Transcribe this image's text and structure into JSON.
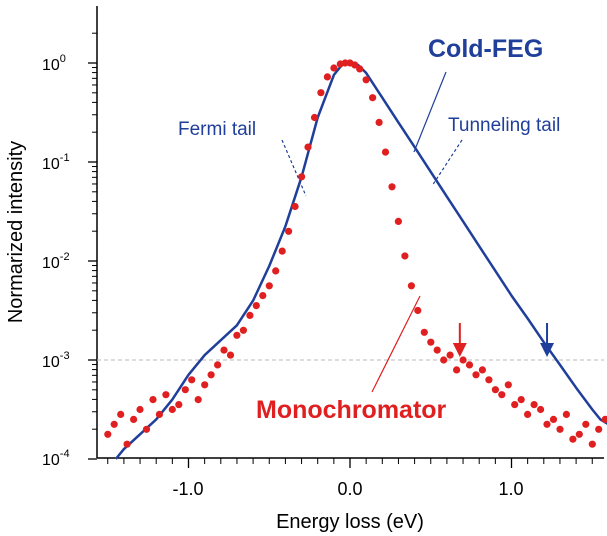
{
  "chart_data": {
    "type": "scatter",
    "title": "",
    "xlabel": "Energy loss (eV)",
    "ylabel": "Normarized intensity",
    "xlim": [
      -1.6,
      1.6
    ],
    "ylim_log10": [
      -4,
      0.4
    ],
    "y_scale": "log",
    "xticks": [
      {
        "value": -1.0,
        "label": "-1.0"
      },
      {
        "value": 0.0,
        "label": "0.0"
      },
      {
        "value": 1.0,
        "label": "1.0"
      }
    ],
    "yticks": [
      {
        "exp": 0,
        "base": "10",
        "sup": "0"
      },
      {
        "exp": -1,
        "base": "10",
        "sup": "-1"
      },
      {
        "exp": -2,
        "base": "10",
        "sup": "-2"
      },
      {
        "exp": -3,
        "base": "10",
        "sup": "-3"
      },
      {
        "exp": -4,
        "base": "10",
        "sup": "-4"
      }
    ],
    "reference_line": {
      "y": 0.001,
      "style": "dashed"
    },
    "series": [
      {
        "name": "Cold-FEG",
        "kind": "line",
        "color": "#1f3f9a",
        "x": [
          -1.45,
          -1.4,
          -1.3,
          -1.2,
          -1.1,
          -1.0,
          -0.9,
          -0.8,
          -0.7,
          -0.6,
          -0.5,
          -0.4,
          -0.3,
          -0.2,
          -0.1,
          -0.05,
          0.0,
          0.05,
          0.1,
          0.2,
          0.3,
          0.4,
          0.5,
          0.6,
          0.7,
          0.8,
          0.9,
          1.0,
          1.1,
          1.2,
          1.3,
          1.4,
          1.5,
          1.55,
          1.6
        ],
        "log10y": [
          -4.0,
          -3.9,
          -3.75,
          -3.6,
          -3.4,
          -3.15,
          -2.95,
          -2.8,
          -2.65,
          -2.4,
          -2.05,
          -1.65,
          -1.15,
          -0.55,
          -0.12,
          -0.02,
          0.0,
          -0.02,
          -0.1,
          -0.35,
          -0.6,
          -0.85,
          -1.1,
          -1.35,
          -1.6,
          -1.85,
          -2.1,
          -2.35,
          -2.58,
          -2.82,
          -3.05,
          -3.28,
          -3.5,
          -3.6,
          -3.65
        ]
      },
      {
        "name": "Monochromator",
        "kind": "markers",
        "color": "#e02020",
        "x": [
          -1.5,
          -1.46,
          -1.42,
          -1.38,
          -1.34,
          -1.3,
          -1.26,
          -1.22,
          -1.18,
          -1.14,
          -1.1,
          -1.06,
          -1.02,
          -0.98,
          -0.94,
          -0.9,
          -0.86,
          -0.82,
          -0.78,
          -0.74,
          -0.7,
          -0.66,
          -0.62,
          -0.58,
          -0.54,
          -0.5,
          -0.46,
          -0.42,
          -0.38,
          -0.34,
          -0.3,
          -0.26,
          -0.22,
          -0.18,
          -0.14,
          -0.1,
          -0.06,
          -0.03,
          0.0,
          0.03,
          0.06,
          0.1,
          0.14,
          0.18,
          0.22,
          0.26,
          0.3,
          0.34,
          0.38,
          0.42,
          0.46,
          0.5,
          0.54,
          0.58,
          0.62,
          0.66,
          0.7,
          0.74,
          0.78,
          0.82,
          0.86,
          0.9,
          0.94,
          0.98,
          1.02,
          1.06,
          1.1,
          1.14,
          1.18,
          1.22,
          1.26,
          1.3,
          1.34,
          1.38,
          1.42,
          1.46,
          1.5,
          1.54,
          1.58
        ],
        "log10y": [
          -3.75,
          -3.65,
          -3.55,
          -3.85,
          -3.6,
          -3.5,
          -3.7,
          -3.4,
          -3.55,
          -3.35,
          -3.5,
          -3.45,
          -3.3,
          -3.2,
          -3.4,
          -3.25,
          -3.15,
          -3.05,
          -2.9,
          -2.95,
          -2.75,
          -2.7,
          -2.55,
          -2.45,
          -2.35,
          -2.25,
          -2.1,
          -1.9,
          -1.7,
          -1.45,
          -1.15,
          -0.85,
          -0.55,
          -0.3,
          -0.14,
          -0.05,
          -0.01,
          0.0,
          0.0,
          -0.02,
          -0.06,
          -0.17,
          -0.35,
          -0.6,
          -0.9,
          -1.25,
          -1.6,
          -1.95,
          -2.25,
          -2.5,
          -2.72,
          -2.82,
          -2.9,
          -3.0,
          -2.95,
          -3.1,
          -3.0,
          -3.05,
          -3.15,
          -3.1,
          -3.2,
          -3.3,
          -3.35,
          -3.25,
          -3.45,
          -3.4,
          -3.55,
          -3.45,
          -3.5,
          -3.65,
          -3.6,
          -3.7,
          -3.55,
          -3.8,
          -3.75,
          -3.65,
          -3.85,
          -3.7,
          -3.6
        ]
      }
    ],
    "annotations": [
      {
        "text": "Cold-FEG",
        "color": "#1f3f9a"
      },
      {
        "text": "Fermi tail",
        "color": "#1f3f9a"
      },
      {
        "text": "Tunneling tail",
        "color": "#1f3f9a"
      },
      {
        "text": "Monochromator",
        "color": "#e02020"
      }
    ],
    "arrows": [
      {
        "series": "Monochromator",
        "x": 0.68,
        "color": "#e02020"
      },
      {
        "series": "Cold-FEG",
        "x": 1.22,
        "color": "#1f3f9a"
      }
    ]
  }
}
